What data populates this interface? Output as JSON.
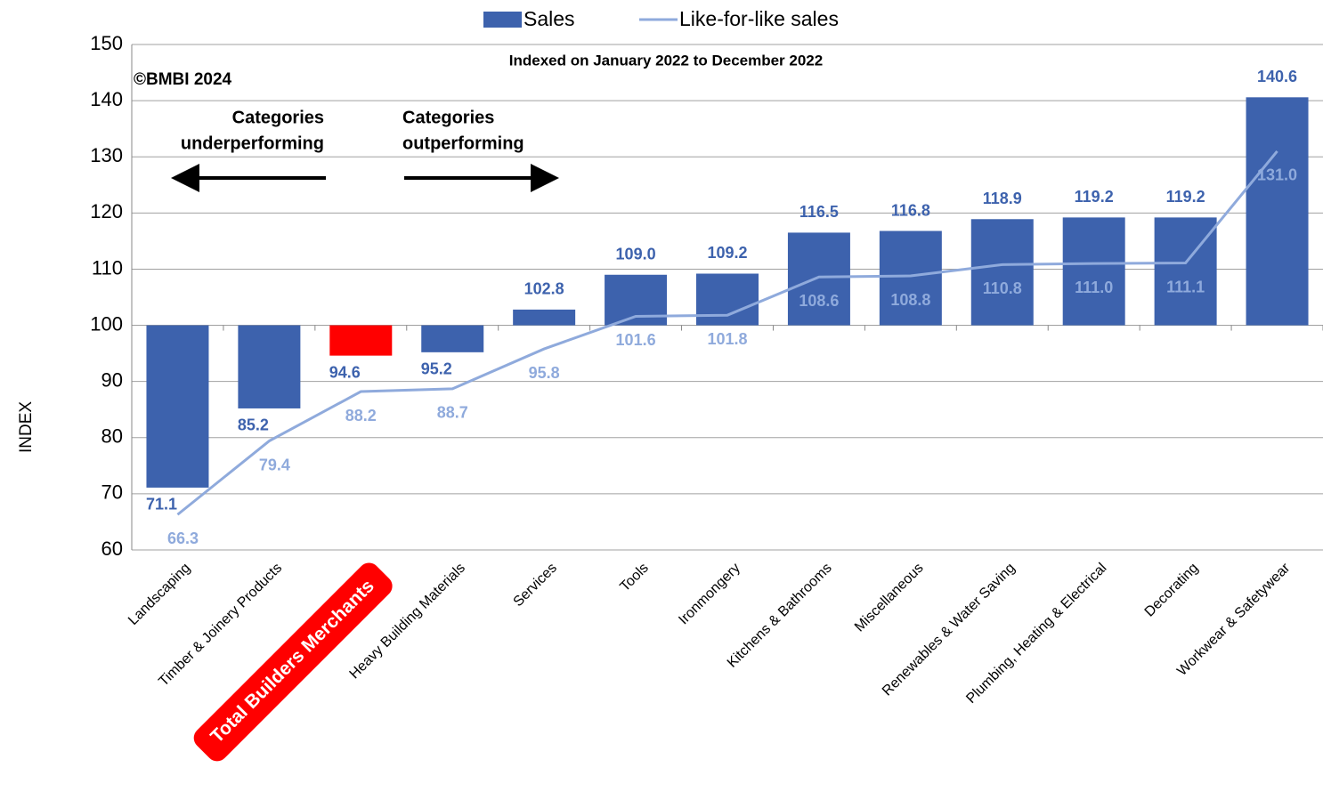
{
  "chart_data": {
    "type": "bar",
    "title": "Indexed on January 2022 to December 2022",
    "ylabel": "INDEX",
    "annotations": [
      "©BMBI 2024"
    ],
    "arrow_labels": {
      "left": [
        "Categories",
        "underperforming"
      ],
      "right": [
        "Categories",
        "outperforming"
      ]
    },
    "categories": [
      "Landscaping",
      "Timber & Joinery Products",
      "Total Builders Merchants",
      "Heavy Building Materials",
      "Services",
      "Tools",
      "Ironmongery",
      "Kitchens & Bathrooms",
      "Miscellaneous",
      "Renewables & Water Saving",
      "Plumbing, Heating & Electrical",
      "Decorating",
      "Workwear & Safetywear"
    ],
    "base": 100,
    "series": [
      {
        "name": "Sales",
        "type": "bar",
        "color": "#3d62ad",
        "colors": [
          "#3d62ad",
          "#3d62ad",
          "#ff0000",
          "#3d62ad",
          "#3d62ad",
          "#3d62ad",
          "#3d62ad",
          "#3d62ad",
          "#3d62ad",
          "#3d62ad",
          "#3d62ad",
          "#3d62ad",
          "#3d62ad"
        ],
        "values": [
          71.1,
          85.2,
          94.6,
          95.2,
          102.8,
          109.0,
          109.2,
          116.5,
          116.8,
          118.9,
          119.2,
          119.2,
          140.6
        ],
        "value_labels": [
          "71.1",
          "85.2",
          "94.6",
          "95.2",
          "102.8",
          "109.0",
          "109.2",
          "116.5",
          "116.8",
          "118.9",
          "119.2",
          "119.2",
          "140.6"
        ]
      },
      {
        "name": "Like-for-like sales",
        "type": "line",
        "color": "#8faadc",
        "values": [
          66.3,
          79.4,
          88.2,
          88.7,
          95.8,
          101.6,
          101.8,
          108.6,
          108.8,
          110.8,
          111.0,
          111.1,
          131.0
        ],
        "value_labels": [
          "66.3",
          "79.4",
          "88.2",
          "88.7",
          "95.8",
          "101.6",
          "101.8",
          "108.6",
          "108.8",
          "110.8",
          "111.0",
          "111.1",
          "131.0"
        ]
      }
    ],
    "highlight_color": "#ff0000",
    "ylim": [
      60,
      150
    ],
    "yticks": [
      60,
      70,
      80,
      90,
      100,
      110,
      120,
      130,
      140,
      150
    ],
    "grid": true
  }
}
